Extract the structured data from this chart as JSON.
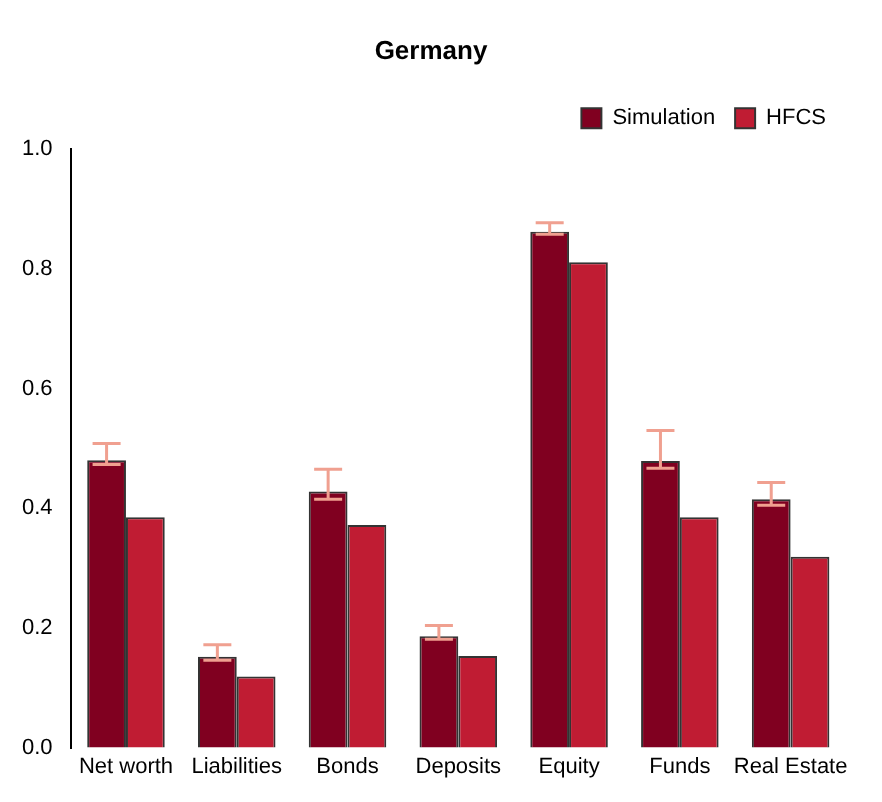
{
  "chart_data": {
    "type": "bar",
    "title": "Germany",
    "categories": [
      "Net worth",
      "Liabilities",
      "Bonds",
      "Deposits",
      "Equity",
      "Funds",
      "Real Estate"
    ],
    "series": [
      {
        "name": "Simulation",
        "color": "#800020",
        "values": [
          0.48,
          0.152,
          0.428,
          0.186,
          0.862,
          0.479,
          0.415
        ],
        "errors": [
          [
            0.473,
            0.508
          ],
          [
            0.146,
            0.172
          ],
          [
            0.415,
            0.465
          ],
          [
            0.181,
            0.204
          ],
          [
            0.858,
            0.877
          ],
          [
            0.467,
            0.53
          ],
          [
            0.405,
            0.443
          ]
        ]
      },
      {
        "name": "HFCS",
        "color": "#c01c33",
        "values": [
          0.385,
          0.119,
          0.372,
          0.153,
          0.811,
          0.385,
          0.319
        ]
      }
    ],
    "ylim": [
      0,
      1
    ],
    "yticks": [
      {
        "value": 0,
        "label": "0.0"
      },
      {
        "value": 0.2,
        "label": "0.2"
      },
      {
        "value": 0.4,
        "label": "0.4"
      },
      {
        "value": 0.6,
        "label": "0.6"
      },
      {
        "value": 0.8,
        "label": "0.8"
      },
      {
        "value": 1,
        "label": "1.0"
      }
    ],
    "grid": false,
    "legend": "top right"
  }
}
